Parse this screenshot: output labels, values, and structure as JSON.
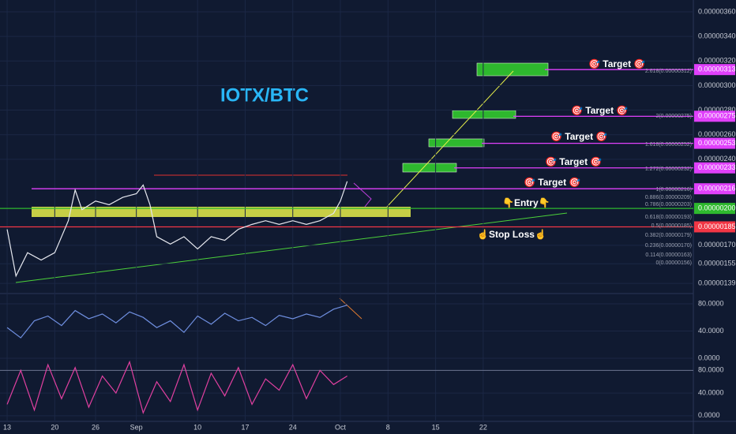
{
  "chart_data": {
    "type": "line",
    "title": "IOTX/BTC",
    "x": [
      0,
      1.3,
      3,
      5,
      7,
      9,
      10,
      11,
      13,
      15,
      17,
      19,
      20,
      21,
      22,
      24,
      26,
      28,
      30,
      32,
      34,
      36,
      38,
      40,
      42,
      44,
      46,
      48,
      49,
      50
    ],
    "series": [
      {
        "color": "#e6e8ef",
        "values": [
          1.83e-06,
          1.45e-06,
          1.64e-06,
          1.58e-06,
          1.64e-06,
          1.9e-06,
          2.15e-06,
          1.99e-06,
          2.06e-06,
          2.03e-06,
          2.09e-06,
          2.12e-06,
          2.19e-06,
          2.03e-06,
          1.77e-06,
          1.71e-06,
          1.77e-06,
          1.67e-06,
          1.77e-06,
          1.74e-06,
          1.83e-06,
          1.87e-06,
          1.9e-06,
          1.87e-06,
          1.9e-06,
          1.87e-06,
          1.9e-06,
          1.96e-06,
          2.06e-06,
          2.22e-06
        ]
      }
    ],
    "xlim": [
      -1.05,
      100.9
    ],
    "xticks": [
      {
        "value": 0,
        "label": "13"
      },
      {
        "value": 7,
        "label": "20"
      },
      {
        "value": 13,
        "label": "26"
      },
      {
        "value": 19,
        "label": "Sep"
      },
      {
        "value": 28,
        "label": "10"
      },
      {
        "value": 35,
        "label": "17"
      },
      {
        "value": 42,
        "label": "24"
      },
      {
        "value": 49,
        "label": "Oct"
      },
      {
        "value": 56,
        "label": "8"
      },
      {
        "value": 63,
        "label": "15"
      },
      {
        "value": 70,
        "label": "22"
      }
    ],
    "ylim": [
      1.32e-06,
      3.6963e-06
    ],
    "yticks": [
      {
        "value": 3.6e-06,
        "label": "0.00000360"
      },
      {
        "value": 3.4e-06,
        "label": "0.00000340"
      },
      {
        "value": 3.2e-06,
        "label": "0.00000320"
      },
      {
        "value": 3e-06,
        "label": "0.00000300"
      },
      {
        "value": 2.8e-06,
        "label": "0.00000280"
      },
      {
        "value": 2.6e-06,
        "label": "0.00000260"
      },
      {
        "value": 2.4e-06,
        "label": "0.00000240"
      },
      {
        "value": 1.7e-06,
        "label": "0.00000170"
      },
      {
        "value": 1.55e-06,
        "label": "0.00000155"
      },
      {
        "value": 1.39e-06,
        "label": "0.00000139"
      }
    ],
    "grid": true,
    "price_levels": [
      {
        "price": 3.13e-06,
        "color": "#e040fb"
      },
      {
        "price": 2.75e-06,
        "color": "#e040fb"
      },
      {
        "price": 2.53e-06,
        "color": "#e040fb"
      },
      {
        "price": 2.33e-06,
        "color": "#e040fb"
      },
      {
        "price": 2.16e-06,
        "color": "#e040fb"
      },
      {
        "price": {
          "value": 2e-06,
          "label": "0.00000200"
        },
        "color": "#2eb82e"
      },
      {
        "price": 1.85e-06,
        "color": "#f23645"
      }
    ],
    "annotations": [
      "🎯 Target 🎯",
      "🎯 Target 🎯",
      "🎯 Target 🎯",
      "🎯 Target 🎯",
      "🎯 Target 🎯",
      "👇Entry👇",
      "☝Stop Loss☝"
    ],
    "fib_labels": [
      "2.618(0.00000312)",
      "2(0.00000275)",
      "1.618(0.00000252)",
      "1.272(0.00000232)",
      "1(0.00000216)",
      "0.886(0.00000209)",
      "0.786(0.00000203)",
      "0.618(0.00000193)",
      "0.5(0.00000185)",
      "0.382(0.00000179)",
      "0.236(0.00000170)",
      "0.114(0.00000163)",
      "0(0.00000156)"
    ],
    "rsi": {
      "color": "#6f8fe0",
      "x": [
        0,
        2,
        4,
        6,
        8,
        10,
        12,
        14,
        16,
        18,
        20,
        22,
        24,
        26,
        28,
        30,
        32,
        34,
        36,
        38,
        40,
        42,
        44,
        46,
        48,
        50
      ],
      "values": [
        45,
        30,
        55,
        62,
        48,
        70,
        58,
        65,
        52,
        68,
        60,
        45,
        55,
        38,
        62,
        50,
        66,
        55,
        60,
        48,
        63,
        58,
        65,
        60,
        72,
        78
      ],
      "ylim": [
        0,
        95
      ],
      "yticks": [
        {
          "value": 80,
          "label": "80.0000"
        },
        {
          "value": 40,
          "label": "40.0000"
        },
        {
          "value": 0,
          "label": "0.0000"
        }
      ]
    },
    "stoch": {
      "color": "#e040a0",
      "x": [
        0,
        2,
        4,
        6,
        8,
        10,
        12,
        14,
        16,
        18,
        20,
        22,
        24,
        26,
        28,
        30,
        32,
        34,
        36,
        38,
        40,
        42,
        44,
        46,
        48,
        50
      ],
      "values": [
        20,
        80,
        10,
        90,
        30,
        85,
        15,
        70,
        40,
        95,
        5,
        60,
        25,
        90,
        10,
        75,
        35,
        85,
        20,
        65,
        45,
        90,
        30,
        80,
        55,
        70
      ],
      "ylim": [
        -10,
        100
      ],
      "yticks": [
        {
          "value": 80,
          "label": "80.0000"
        },
        {
          "value": 40,
          "label": "40.0000"
        },
        {
          "value": 0,
          "label": "0.0000"
        }
      ]
    }
  }
}
